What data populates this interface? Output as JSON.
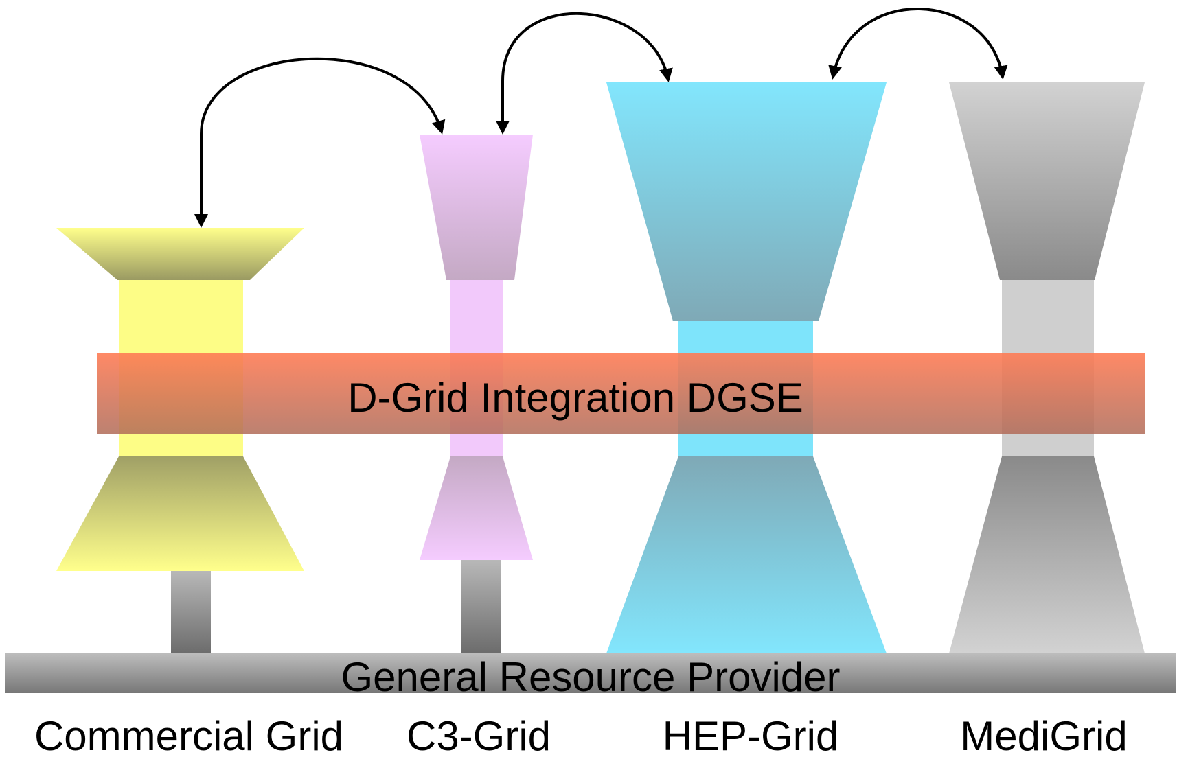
{
  "integration_band": {
    "label": "D-Grid Integration DGSE",
    "color": "#f26a4f"
  },
  "resource_provider": {
    "label": "General Resource Provider"
  },
  "grids": [
    {
      "id": "commercial",
      "label": "Commercial Grid",
      "color": "#fdfd86"
    },
    {
      "id": "c3",
      "label": "C3-Grid",
      "color": "#f2c9fb"
    },
    {
      "id": "hep",
      "label": "HEP-Grid",
      "color": "#7ee4fb"
    },
    {
      "id": "medi",
      "label": "MediGrid",
      "color": "#cfcfcf"
    }
  ],
  "connections": [
    {
      "from": "commercial",
      "to": "c3"
    },
    {
      "from": "c3",
      "to": "hep"
    },
    {
      "from": "hep",
      "to": "medi"
    }
  ]
}
